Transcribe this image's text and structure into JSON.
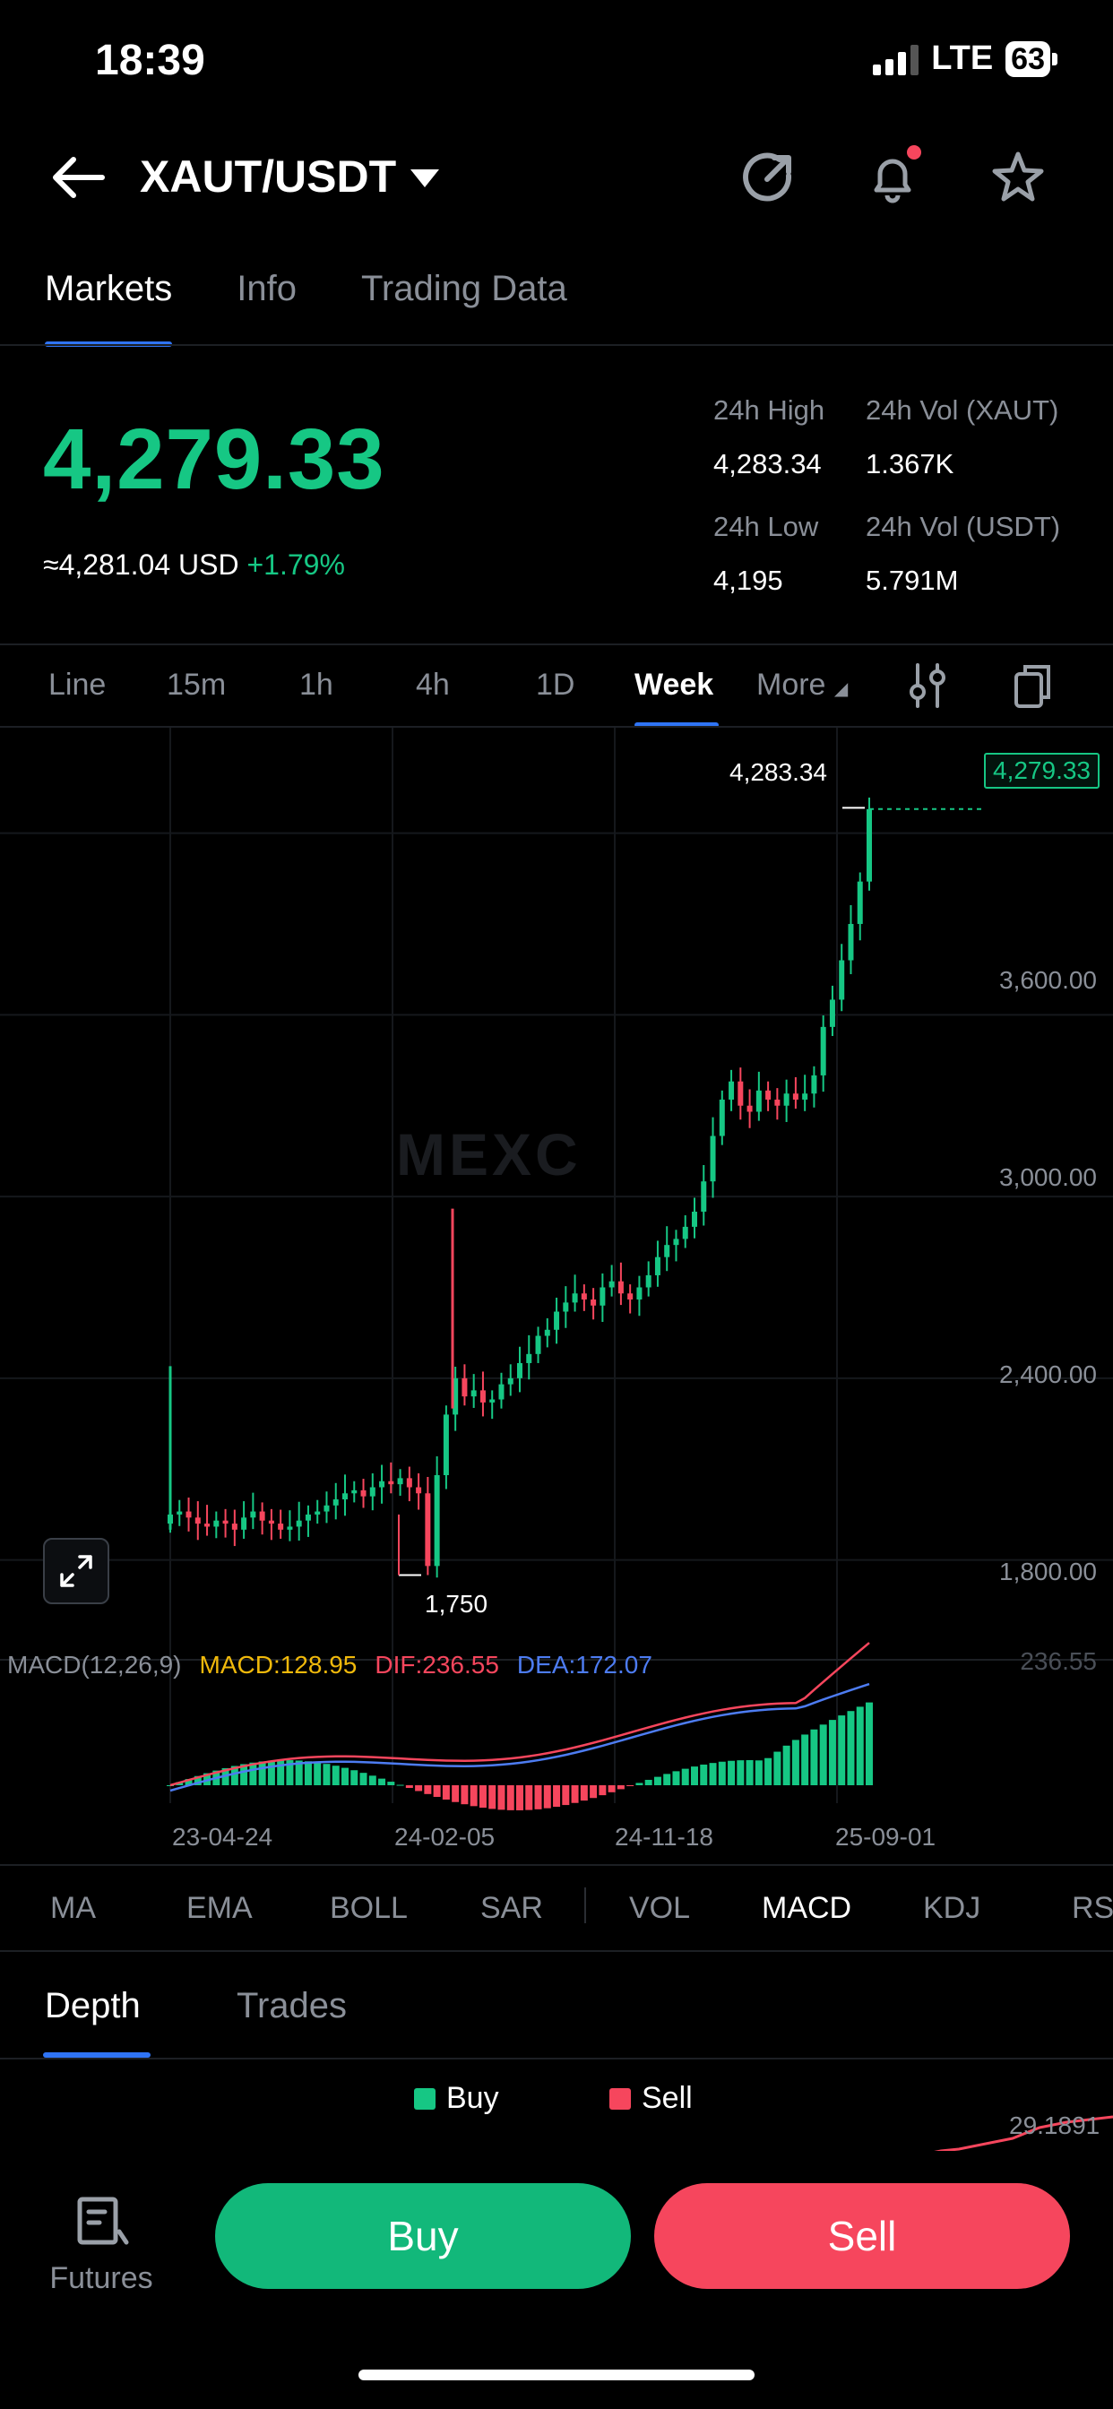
{
  "status": {
    "time": "18:39",
    "network": "LTE",
    "battery": "63"
  },
  "header": {
    "pair": "XAUT/USDT"
  },
  "tabs": [
    "Markets",
    "Info",
    "Trading Data"
  ],
  "price": {
    "last": "4,279.33",
    "usd_equiv": "≈4,281.04 USD",
    "change": "+1.79%"
  },
  "stats": {
    "high_label": "24h High",
    "high_value": "4,283.34",
    "vol_xaut_label": "24h Vol (XAUT)",
    "vol_xaut_value": "1.367K",
    "low_label": "24h Low",
    "low_value": "4,195",
    "vol_usdt_label": "24h Vol  (USDT)",
    "vol_usdt_value": "5.791M"
  },
  "timeframes": [
    "Line",
    "15m",
    "1h",
    "4h",
    "1D",
    "Week",
    "More"
  ],
  "active_timeframe": "Week",
  "chart": {
    "watermark": "MEXC",
    "high_marker": "4,283.34",
    "last_tag": "4,279.33",
    "low_marker": "1,750",
    "y_ticks": [
      "3,600.00",
      "3,000.00",
      "2,400.00",
      "1,800.00"
    ],
    "x_ticks": [
      "23-04-24",
      "24-02-05",
      "24-11-18",
      "25-09-01"
    ],
    "macd_axis": "236.55",
    "macd": {
      "name": "MACD(12,26,9)",
      "macd": "MACD:128.95",
      "dif": "DIF:236.55",
      "dea": "DEA:172.07"
    }
  },
  "chart_data": {
    "type": "candlestick",
    "ylim": [
      1500,
      4400
    ],
    "last": 4279.33,
    "high": 4283.34,
    "low": 1750,
    "y_ticks": [
      3600,
      3000,
      2400,
      1800
    ],
    "x_ticks": [
      "23-04-24",
      "24-02-05",
      "24-11-18",
      "25-09-01"
    ],
    "close_approx": [
      1950,
      1960,
      1940,
      1920,
      1910,
      1930,
      1920,
      1900,
      1940,
      1960,
      1930,
      1920,
      1900,
      1910,
      1930,
      1950,
      1960,
      1980,
      2000,
      2020,
      2030,
      2010,
      2040,
      2060,
      2050,
      2070,
      2040,
      2020,
      1780,
      2080,
      2280,
      2400,
      2340,
      2360,
      2320,
      2330,
      2380,
      2400,
      2450,
      2480,
      2540,
      2560,
      2620,
      2650,
      2680,
      2660,
      2640,
      2700,
      2720,
      2680,
      2660,
      2700,
      2740,
      2800,
      2840,
      2860,
      2900,
      2950,
      3050,
      3200,
      3320,
      3380,
      3300,
      3280,
      3350,
      3320,
      3300,
      3340,
      3320,
      3340,
      3400,
      3560,
      3650,
      3780,
      3900,
      4040,
      4279.33
    ],
    "macd_panel": {
      "macd": 128.95,
      "dif": 236.55,
      "dea": 172.07
    }
  },
  "indicators": [
    "MA",
    "EMA",
    "BOLL",
    "SAR",
    "VOL",
    "MACD",
    "KDJ",
    "RS"
  ],
  "active_indicator": "MACD",
  "depth": {
    "tabs": [
      "Depth",
      "Trades"
    ],
    "legend_buy": "Buy",
    "legend_sell": "Sell",
    "axis_value": "29.1891"
  },
  "bottom": {
    "futures": "Futures",
    "buy": "Buy",
    "sell": "Sell"
  },
  "colors": {
    "up": "#16c784",
    "down": "#f6465d",
    "accent": "#2f74f5",
    "dea": "#4d7cf2"
  }
}
